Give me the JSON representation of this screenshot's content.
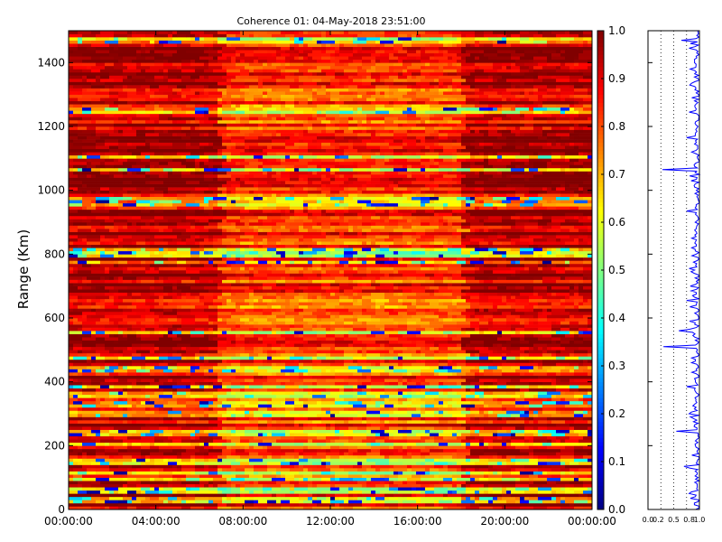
{
  "chart_data": [
    {
      "type": "heatmap",
      "title": "Coherence 01: 04-May-2018 23:51:00",
      "xlabel": "",
      "ylabel": "Range (Km)",
      "x_ticks": [
        "00:00:00",
        "04:00:00",
        "08:00:00",
        "12:00:00",
        "16:00:00",
        "20:00:00",
        "00:00:00"
      ],
      "x_range_hours": [
        0,
        24
      ],
      "y_ticks": [
        0,
        200,
        400,
        600,
        800,
        1000,
        1200,
        1400
      ],
      "ylim": [
        0,
        1500
      ],
      "value_range": [
        0.0,
        1.0
      ],
      "colormap": "jet",
      "colorbar_ticks": [
        0.0,
        0.1,
        0.2,
        0.3,
        0.4,
        0.5,
        0.6,
        0.7,
        0.8,
        0.9,
        1.0
      ],
      "time_segments_hours": [
        [
          0,
          6.9
        ],
        [
          6.9,
          18
        ],
        [
          18,
          24
        ]
      ],
      "low_coherence_ranges_km": [
        30,
        60,
        95,
        115,
        150,
        205,
        240,
        300,
        330,
        360,
        385,
        440,
        475,
        555,
        775,
        800,
        810,
        955,
        970,
        1065,
        1105,
        1245,
        1250,
        1470
      ],
      "grid": false
    },
    {
      "type": "line",
      "title": "",
      "xlabel": "",
      "ylabel": "",
      "x_ticks": [
        "0.0",
        "0.2",
        "0.5",
        "0.8",
        "1.0"
      ],
      "xlim": [
        0,
        1
      ],
      "ylim": [
        0,
        1500
      ],
      "series_color": "#0000ff",
      "grid": "vertical dotted",
      "profile_dips_km": [
        [
          50,
          0.8
        ],
        [
          135,
          0.7
        ],
        [
          245,
          0.55
        ],
        [
          300,
          0.8
        ],
        [
          385,
          0.75
        ],
        [
          510,
          0.3
        ],
        [
          560,
          0.6
        ],
        [
          655,
          0.75
        ],
        [
          755,
          0.8
        ],
        [
          935,
          0.75
        ],
        [
          1065,
          0.28
        ],
        [
          1165,
          0.75
        ],
        [
          1245,
          0.8
        ],
        [
          1290,
          0.85
        ],
        [
          1445,
          0.8
        ],
        [
          1470,
          0.65
        ]
      ]
    }
  ]
}
